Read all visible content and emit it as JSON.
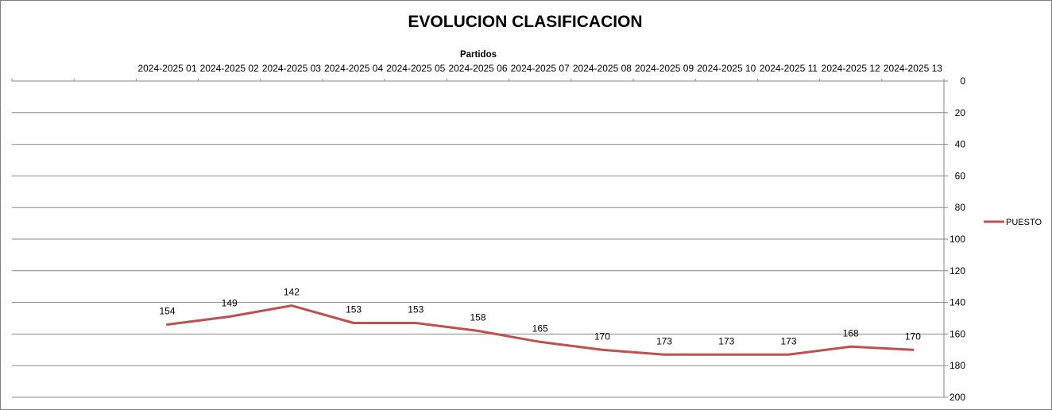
{
  "chart_data": {
    "type": "line",
    "title": "EVOLUCION CLASIFICACION",
    "xlabel": "Partidos",
    "ylabel": "",
    "categories": [
      "",
      "",
      "2024-2025 01",
      "2024-2025 02",
      "2024-2025 03",
      "2024-2025 04",
      "2024-2025 05",
      "2024-2025 06",
      "2024-2025 07",
      "2024-2025 08",
      "2024-2025 09",
      "2024-2025 10",
      "2024-2025 11",
      "2024-2025 12",
      "2024-2025 13"
    ],
    "x_axis_position": "top",
    "y_axis_position": "right",
    "y_reversed": true,
    "ylim": [
      0,
      200
    ],
    "yticks": [
      0,
      20,
      40,
      60,
      80,
      100,
      120,
      140,
      160,
      180,
      200
    ],
    "grid": true,
    "legend": "right",
    "series": [
      {
        "name": "PUESTO",
        "color": "#c0504d",
        "values": [
          null,
          null,
          154,
          149,
          142,
          153,
          153,
          158,
          165,
          170,
          173,
          173,
          173,
          168,
          170
        ]
      }
    ]
  }
}
